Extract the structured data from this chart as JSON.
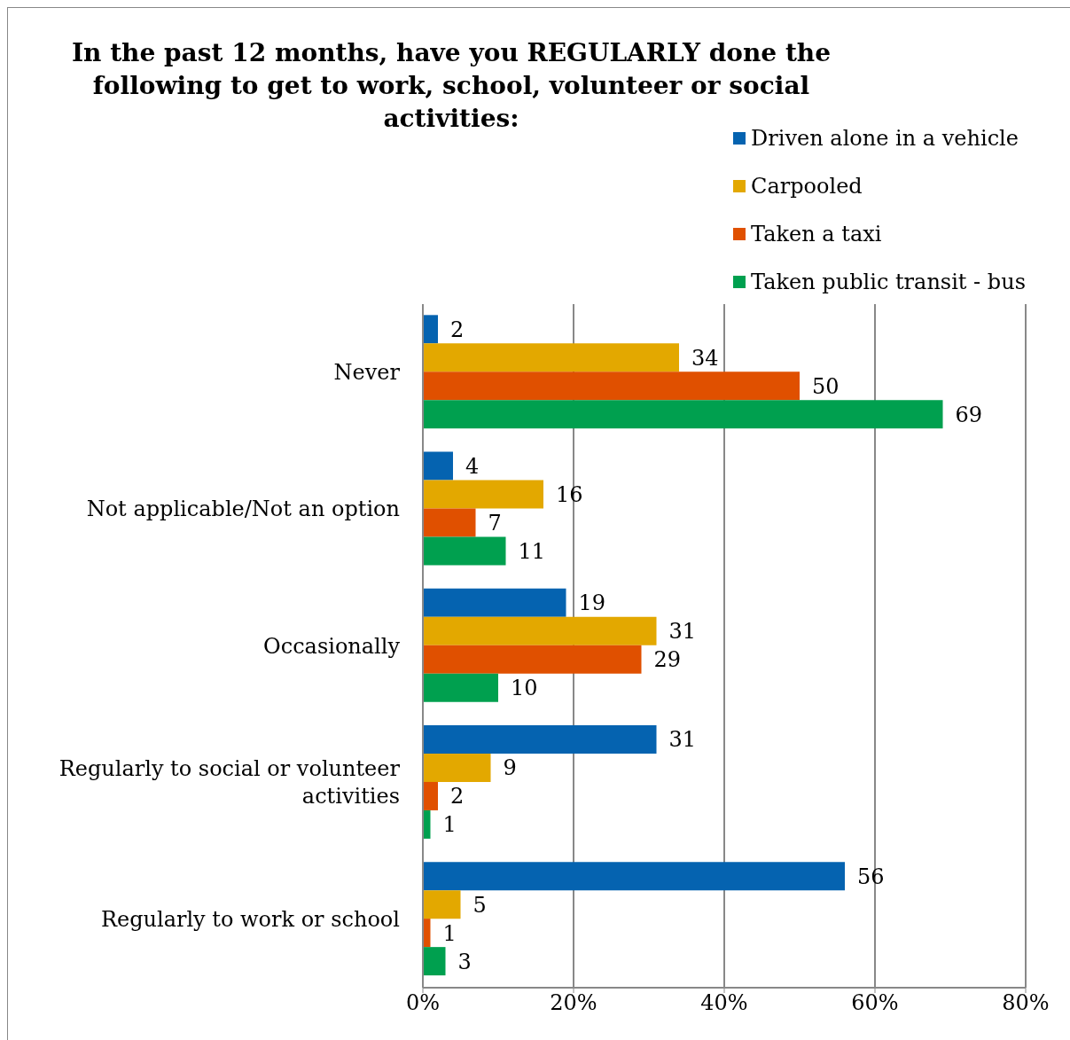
{
  "chart_data": {
    "type": "bar",
    "orientation": "horizontal",
    "title": "In the past 12 months, have you REGULARLY done the following to get to work, school, volunteer or social activities:",
    "categories": [
      "Never",
      "Not applicable/Not an option",
      "Occasionally",
      "Regularly to social or volunteer activities",
      "Regularly to work or school"
    ],
    "series": [
      {
        "name": "Driven alone in a vehicle",
        "color": "#0563b0",
        "values": [
          2,
          4,
          19,
          31,
          56
        ]
      },
      {
        "name": "Carpooled",
        "color": "#e3a800",
        "values": [
          34,
          16,
          31,
          9,
          5
        ]
      },
      {
        "name": "Taken a taxi",
        "color": "#e05000",
        "values": [
          50,
          7,
          29,
          2,
          1
        ]
      },
      {
        "name": "Taken public transit - bus",
        "color": "#00a04f",
        "values": [
          69,
          11,
          10,
          1,
          3
        ]
      }
    ],
    "xlim": [
      0,
      80
    ],
    "xticks": [
      {
        "value": 0,
        "label": "0%"
      },
      {
        "value": 20,
        "label": "20%"
      },
      {
        "value": 40,
        "label": "40%"
      },
      {
        "value": 60,
        "label": "60%"
      },
      {
        "value": 80,
        "label": "80%"
      }
    ],
    "grid": "x",
    "legend": "top right",
    "data_labels": true
  }
}
